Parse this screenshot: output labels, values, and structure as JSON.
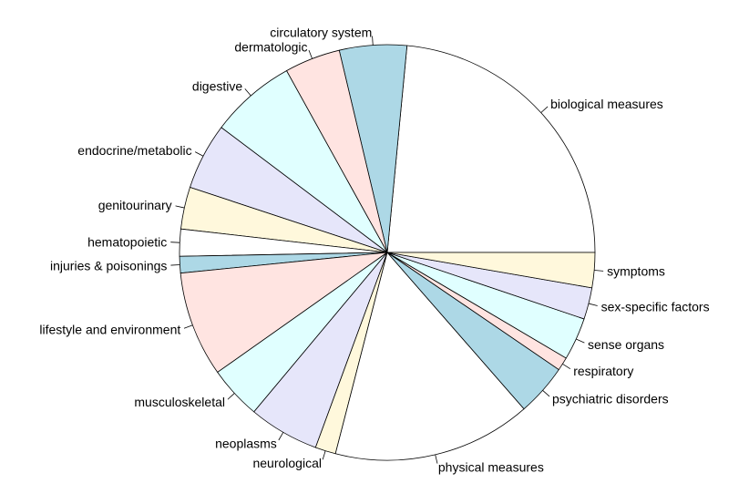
{
  "chart_data": {
    "type": "pie",
    "start_angle_deg": 0,
    "direction": "counterclockwise",
    "palette": [
      "#ffffff",
      "#add8e6",
      "#ffe4e1",
      "#e0ffff",
      "#e6e6fa",
      "#fff8dc"
    ],
    "slices": [
      {
        "label": "biological measures",
        "value": 24.56
      },
      {
        "label": "circulatory system",
        "value": 5.47
      },
      {
        "label": "dermatologic",
        "value": 4.54
      },
      {
        "label": "digestive",
        "value": 6.98
      },
      {
        "label": "endocrine/metabolic",
        "value": 5.43
      },
      {
        "label": "genitourinary",
        "value": 3.42
      },
      {
        "label": "hematopoietic",
        "value": 2.2
      },
      {
        "label": "injuries & poisonings",
        "value": 1.35
      },
      {
        "label": "lifestyle and environment",
        "value": 8.57
      },
      {
        "label": "musculoskeletal",
        "value": 4.32
      },
      {
        "label": "neoplasms",
        "value": 5.73
      },
      {
        "label": "neurological",
        "value": 1.67
      },
      {
        "label": "physical measures",
        "value": 16.15
      },
      {
        "label": "psychiatric disorders",
        "value": 4.22
      },
      {
        "label": "respiratory",
        "value": 1.09
      },
      {
        "label": "sense organs",
        "value": 3.46
      },
      {
        "label": "sex-specific factors",
        "value": 2.57
      },
      {
        "label": "symptoms",
        "value": 2.85
      }
    ]
  }
}
